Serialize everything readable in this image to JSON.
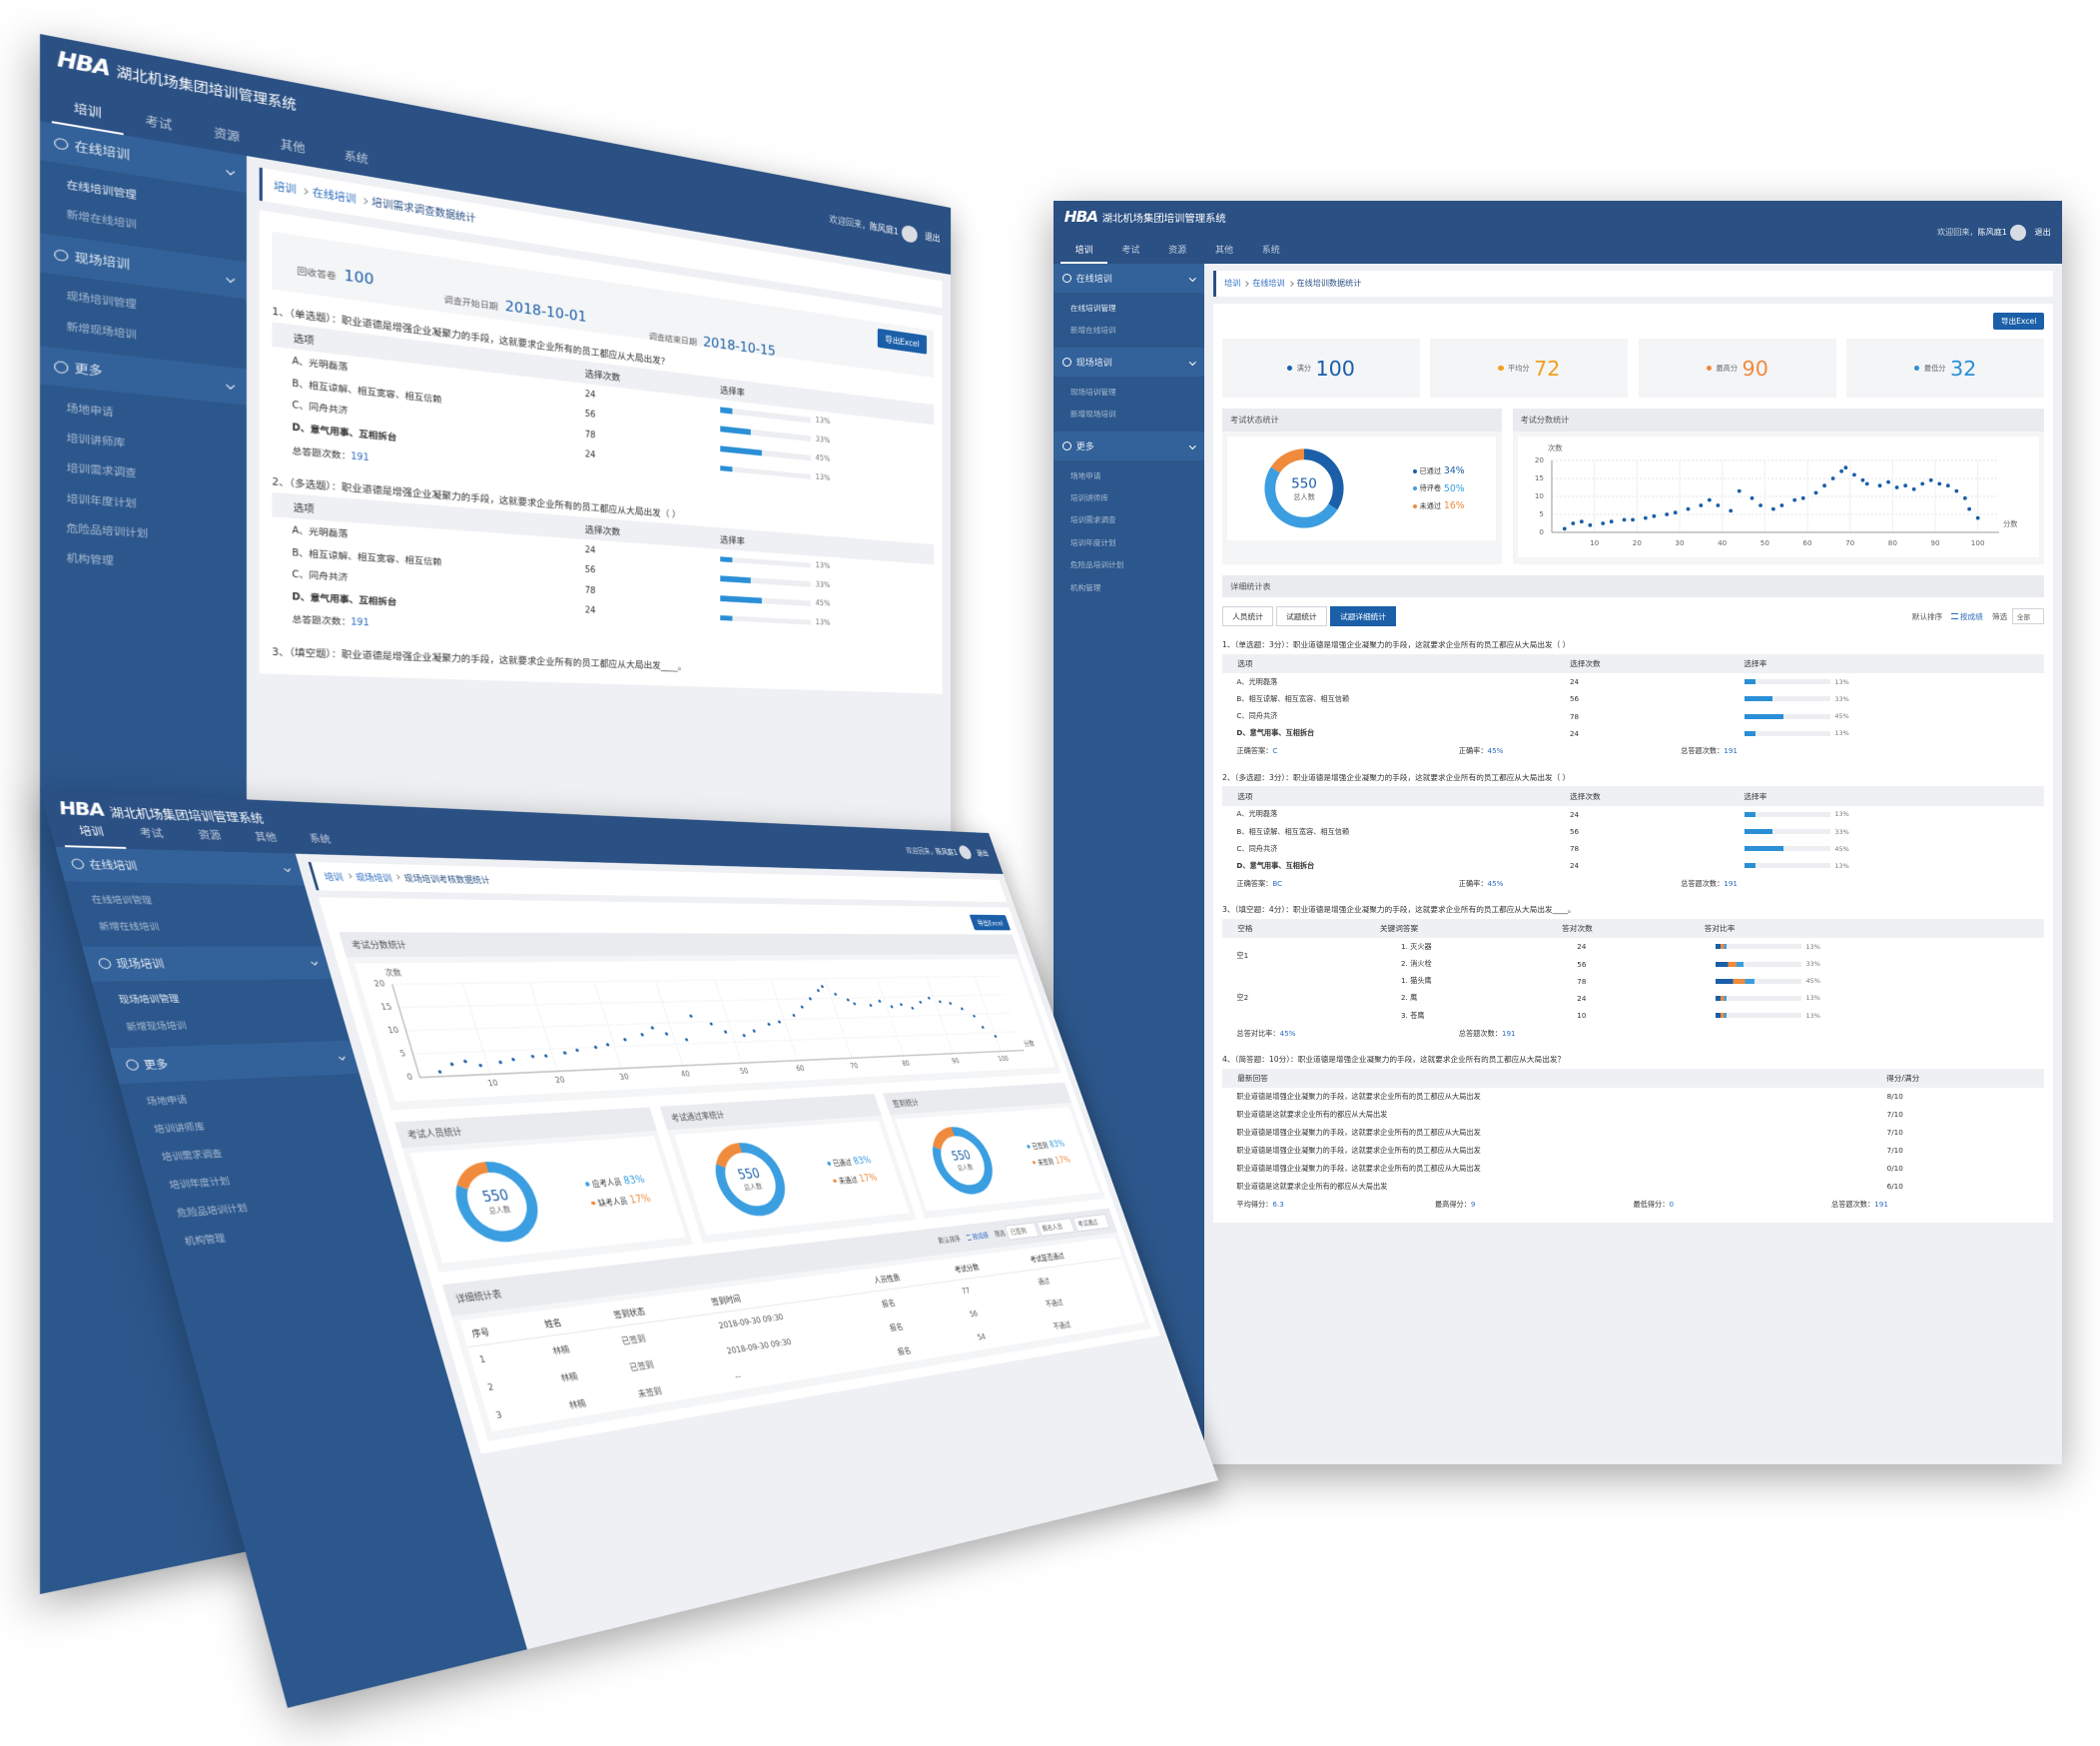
{
  "app": {
    "logo": "HBA",
    "title": "湖北机场集团培训管理系统",
    "tabs": [
      "培训",
      "考试",
      "资源",
      "其他",
      "系统"
    ],
    "welcome": "欢迎回来，",
    "user": "陈风庭1",
    "logout": "退出",
    "menu": [
      {
        "label": "在线培训",
        "items": [
          "在线培训管理",
          "新增在线培训"
        ]
      },
      {
        "label": "现场培训",
        "items": [
          "现场培训管理",
          "新增现场培训"
        ]
      },
      {
        "label": "更多",
        "items": [
          "场地申请",
          "培训讲师库",
          "培训需求调查",
          "培训年度计划",
          "危险品培训计划",
          "机构管理"
        ]
      }
    ]
  },
  "export": "导出Excel",
  "option_stats": {
    "header": [
      "选项",
      "选择次数",
      "选择率"
    ],
    "options": [
      "A、光明磊落",
      "B、相互谅解、相互宽容、相互信赖",
      "C、同舟共济",
      "D、意气用事、互相拆台"
    ],
    "counts": [
      24,
      56,
      78,
      24
    ],
    "rates": [
      13,
      33,
      45,
      13
    ],
    "rate_labels": [
      "13%",
      "33%",
      "45%",
      "13%"
    ]
  },
  "score_chart": {
    "title": "考试分数统计",
    "y_label": "次数",
    "x_label": "分数",
    "xlim": [
      0,
      105
    ],
    "ylim": [
      0,
      20
    ],
    "xticks": [
      10,
      20,
      30,
      40,
      50,
      60,
      70,
      80,
      90,
      100
    ],
    "yticks": [
      0,
      5,
      10,
      15,
      20
    ],
    "color": "#1a5fa8",
    "x": [
      3,
      5,
      7,
      9,
      12,
      14,
      17,
      19,
      22,
      24,
      27,
      29,
      32,
      35,
      37,
      39,
      42,
      44,
      47,
      49,
      52,
      54,
      57,
      59,
      62,
      64,
      66,
      68,
      69,
      71,
      73,
      74,
      77,
      79,
      81,
      83,
      85,
      87,
      89,
      91,
      93,
      95,
      97,
      98,
      100
    ],
    "y": [
      1,
      2.5,
      3,
      2,
      2.5,
      3,
      3.5,
      3.5,
      4,
      4.5,
      5,
      5.5,
      6.5,
      7.5,
      9,
      7.5,
      6,
      11.5,
      9.5,
      7.5,
      6.5,
      7.5,
      9,
      9.5,
      11,
      13,
      15,
      17,
      18,
      16,
      14.5,
      13.5,
      13,
      14,
      12.5,
      13,
      12,
      13.5,
      14.5,
      13.5,
      13,
      11.5,
      9.5,
      6.5,
      4
    ]
  },
  "exam_page": {
    "breadcrumb": [
      "培训",
      "在线培训",
      "在线培训数据统计"
    ],
    "stats": [
      {
        "label": "满分",
        "value": 100,
        "color": "#1a5fa8"
      },
      {
        "label": "平均分",
        "value": 72,
        "color": "#f0a020"
      },
      {
        "label": "最高分",
        "value": 90,
        "color": "#f08a3c"
      },
      {
        "label": "最低分",
        "value": 32,
        "color": "#2a8fd6"
      }
    ],
    "status_chart": {
      "title": "考试状态统计",
      "total": 550,
      "total_label": "总人数",
      "names": [
        "已通过",
        "待评卷",
        "未通过"
      ],
      "values": [
        34,
        50,
        16
      ],
      "value_labels": [
        "34%",
        "50%",
        "16%"
      ],
      "colors": [
        "#1a5fa8",
        "#3a9ee0",
        "#f08a3c"
      ]
    },
    "detail": {
      "title": "详细统计表",
      "tabs": [
        "人员统计",
        "试题统计",
        "试题详细统计"
      ],
      "sort_label": "默认排序",
      "sort_option": "按成绩",
      "filter_label": "筛选",
      "filter_value": "全部",
      "q1": {
        "stem": "1、（单选题：3分）：职业道德是增强企业凝聚力的手段，这就要求企业所有的员工都应从大局出发（ ）",
        "answer_label": "正确答案：",
        "answer": "C",
        "rate_label": "正确率：",
        "rate": "45%",
        "total_label": "总答题次数：",
        "total": 191
      },
      "q2": {
        "stem": "2、（多选题：3分）：职业道德是增强企业凝聚力的手段，这就要求企业所有的员工都应从大局出发（ ）",
        "answer_label": "正确答案：",
        "answer": "BC",
        "rate_label": "正确率：",
        "rate": "45%",
        "total_label": "总答题次数：",
        "total": 191
      },
      "q3": {
        "stem": "3、（填空题：4分）：职业道德是增强企业凝聚力的手段，这就要求企业所有的员工都应从大局出发____。",
        "header": [
          "空格",
          "关键词答案",
          "答对次数",
          "答对比率"
        ],
        "blanks": [
          {
            "name": "空1",
            "answers": [
              "1. 灭火器",
              "2. 消火栓"
            ],
            "counts": [
              24,
              56
            ],
            "rates": [
              13,
              33
            ],
            "rate_labels": [
              "13%",
              "33%"
            ]
          },
          {
            "name": "空2",
            "answers": [
              "1. 猫头鹰",
              "2. 鹰",
              "3. 苍鹰"
            ],
            "counts": [
              78,
              24,
              10
            ],
            "rates": [
              45,
              13,
              13
            ],
            "rate_labels": [
              "45%",
              "13%",
              "13%"
            ]
          }
        ],
        "rate_label": "总答对比率：",
        "rate": "45%",
        "total_label": "总答题次数：",
        "total": 191
      },
      "q4": {
        "stem": "4、（简答题：10分）：职业道德是增强企业凝聚力的手段，这就要求企业所有的员工都应从大局出发？",
        "header": [
          "最新回答",
          "得分/满分"
        ],
        "answers": [
          "职业道德是增强企业凝聚力的手段，这就要求企业所有的员工都应从大局出发",
          "职业道德是这就要求企业所有的都应从大局出发",
          "职业道德是增强企业凝聚力的手段，这就要求企业所有的员工都应从大局出发",
          "职业道德是增强企业凝聚力的手段，这就要求企业所有的员工都应从大局出发",
          "职业道德是增强企业凝聚力的手段，这就要求企业所有的员工都应从大局出发",
          "职业道德是这就要求企业所有的都应从大局出发"
        ],
        "scores": [
          "8/10",
          "7/10",
          "7/10",
          "7/10",
          "0/10",
          "6/10"
        ],
        "footer": [
          {
            "label": "平均得分：",
            "value": 6.3
          },
          {
            "label": "最高得分：",
            "value": 9
          },
          {
            "label": "最低得分：",
            "value": 0
          },
          {
            "label": "总答题次数：",
            "value": 191
          }
        ]
      }
    }
  },
  "survey_page": {
    "breadcrumb": [
      "培训",
      "在线培训",
      "培训需求调查数据统计"
    ],
    "collected_label": "回收答卷",
    "collected": 100,
    "start_label": "调查开始日期",
    "start": "2018-10-01",
    "end_label": "调查结束日期",
    "end": "2018-10-15",
    "questions": [
      {
        "stem": "1、（单选题）：职业道德是增强企业凝聚力的手段，这就要求企业所有的员工都应从大局出发？",
        "total_label": "总答题次数：",
        "total": 191
      },
      {
        "stem": "2、（多选题）：职业道德是增强企业凝聚力的手段，这就要求企业所有的员工都应从大局出发（ ）",
        "total_label": "总答题次数：",
        "total": 191
      },
      {
        "stem": "3、（填空题）：职业道德是增强企业凝聚力的手段，这就要求企业所有的员工都应从大局出发____。"
      }
    ]
  },
  "onsite_page": {
    "breadcrumb": [
      "培训",
      "现场培训",
      "现场培训考核数据统计"
    ],
    "donuts": [
      {
        "title": "考试人员统计",
        "total": 550,
        "total_label": "总人数",
        "names": [
          "应考人员",
          "缺考人员"
        ],
        "values": [
          83,
          17
        ],
        "value_labels": [
          "83%",
          "17%"
        ],
        "colors": [
          "#3a9ee0",
          "#f08a3c"
        ]
      },
      {
        "title": "考试通过率统计",
        "total": 550,
        "total_label": "总人数",
        "names": [
          "已通过",
          "未通过"
        ],
        "values": [
          83,
          17
        ],
        "value_labels": [
          "83%",
          "17%"
        ],
        "colors": [
          "#3a9ee0",
          "#f08a3c"
        ]
      },
      {
        "title": "签到统计",
        "total": 550,
        "total_label": "总人数",
        "names": [
          "已签到",
          "未签到"
        ],
        "values": [
          83,
          17
        ],
        "value_labels": [
          "83%",
          "17%"
        ],
        "colors": [
          "#3a9ee0",
          "#f08a3c"
        ]
      }
    ],
    "table": {
      "title": "详细统计表",
      "sort_label": "默认排序",
      "sort_option": "按成绩",
      "filter_label": "筛选",
      "filters": [
        "已签到",
        "报名人员",
        "考试通过"
      ],
      "header": [
        "序号",
        "姓名",
        "签到状态",
        "签到时间",
        "人员性质",
        "考试分数",
        "考试是否通过"
      ],
      "rows": [
        [
          1,
          "林楠",
          "已签到",
          "2018-09-30 09:30",
          "报名",
          77,
          "通过"
        ],
        [
          2,
          "林楠",
          "已签到",
          "2018-09-30 09:30",
          "报名",
          56,
          "不通过"
        ],
        [
          3,
          "林楠",
          "未签到",
          "--",
          "报名",
          54,
          "不通过"
        ]
      ]
    }
  }
}
